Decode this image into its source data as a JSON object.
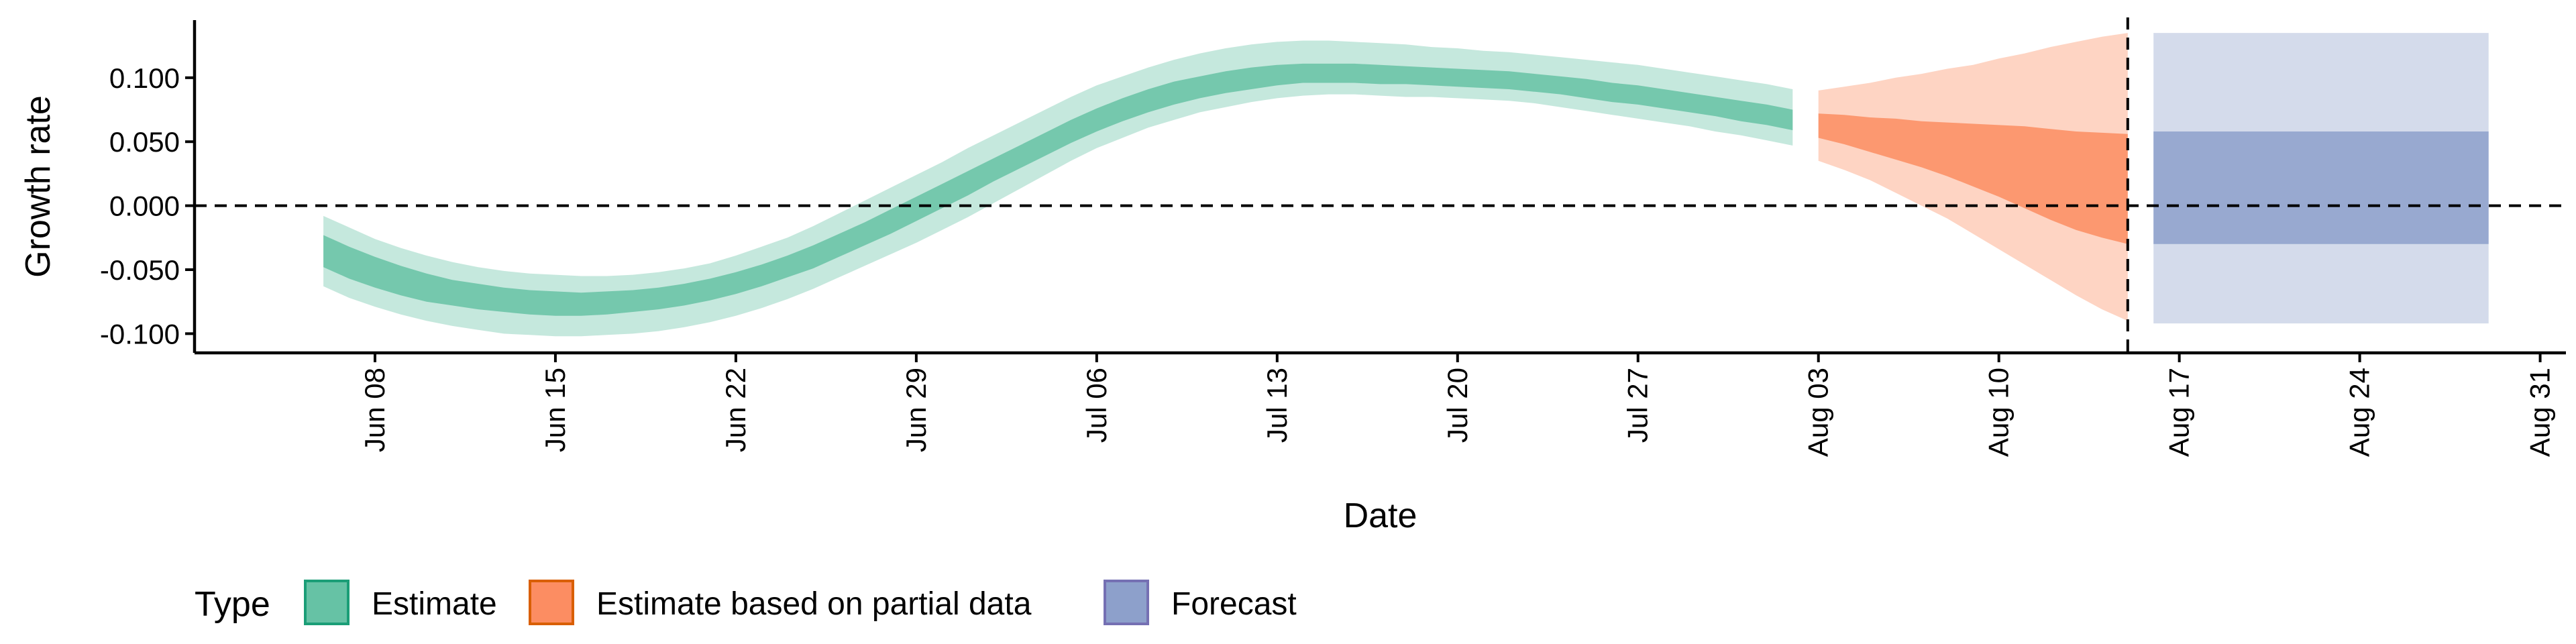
{
  "chart_data": {
    "type": "area",
    "xlabel": "Date",
    "ylabel": "Growth rate",
    "ylim": [
      -0.115,
      0.145
    ],
    "xlim": [
      "2020-06-01",
      "2020-09-01"
    ],
    "y_ticks": [
      {
        "value": 0.1,
        "label": "0.100"
      },
      {
        "value": 0.05,
        "label": "0.050"
      },
      {
        "value": 0.0,
        "label": "0.000"
      },
      {
        "value": -0.05,
        "label": "-0.050"
      },
      {
        "value": -0.1,
        "label": "-0.100"
      }
    ],
    "x_ticks": [
      {
        "date": "2020-06-08",
        "label": "Jun 08"
      },
      {
        "date": "2020-06-15",
        "label": "Jun 15"
      },
      {
        "date": "2020-06-22",
        "label": "Jun 22"
      },
      {
        "date": "2020-06-29",
        "label": "Jun 29"
      },
      {
        "date": "2020-07-06",
        "label": "Jul 06"
      },
      {
        "date": "2020-07-13",
        "label": "Jul 13"
      },
      {
        "date": "2020-07-20",
        "label": "Jul 20"
      },
      {
        "date": "2020-07-27",
        "label": "Jul 27"
      },
      {
        "date": "2020-08-03",
        "label": "Aug 03"
      },
      {
        "date": "2020-08-10",
        "label": "Aug 10"
      },
      {
        "date": "2020-08-17",
        "label": "Aug 17"
      },
      {
        "date": "2020-08-24",
        "label": "Aug 24"
      },
      {
        "date": "2020-08-31",
        "label": "Aug 31"
      }
    ],
    "reference_lines": {
      "horizontal_y": 0.0,
      "vertical_date": "2020-08-15"
    },
    "grid": false,
    "legend_position": "bottom",
    "legend_title": "Type",
    "series": [
      {
        "name": "Estimate",
        "color": "#66c2a5",
        "color_dark": "#1b9e77",
        "x": [
          "2020-06-06",
          "2020-06-07",
          "2020-06-08",
          "2020-06-09",
          "2020-06-10",
          "2020-06-11",
          "2020-06-12",
          "2020-06-13",
          "2020-06-14",
          "2020-06-15",
          "2020-06-16",
          "2020-06-17",
          "2020-06-18",
          "2020-06-19",
          "2020-06-20",
          "2020-06-21",
          "2020-06-22",
          "2020-06-23",
          "2020-06-24",
          "2020-06-25",
          "2020-06-26",
          "2020-06-27",
          "2020-06-28",
          "2020-06-29",
          "2020-06-30",
          "2020-07-01",
          "2020-07-02",
          "2020-07-03",
          "2020-07-04",
          "2020-07-05",
          "2020-07-06",
          "2020-07-07",
          "2020-07-08",
          "2020-07-09",
          "2020-07-10",
          "2020-07-11",
          "2020-07-12",
          "2020-07-13",
          "2020-07-14",
          "2020-07-15",
          "2020-07-16",
          "2020-07-17",
          "2020-07-18",
          "2020-07-19",
          "2020-07-20",
          "2020-07-21",
          "2020-07-22",
          "2020-07-23",
          "2020-07-24",
          "2020-07-25",
          "2020-07-26",
          "2020-07-27",
          "2020-07-28",
          "2020-07-29",
          "2020-07-30",
          "2020-07-31",
          "2020-08-01",
          "2020-08-02"
        ],
        "lower_90": [
          -0.063,
          -0.072,
          -0.079,
          -0.085,
          -0.09,
          -0.094,
          -0.097,
          -0.1,
          -0.101,
          -0.102,
          -0.102,
          -0.101,
          -0.1,
          -0.098,
          -0.095,
          -0.091,
          -0.086,
          -0.08,
          -0.073,
          -0.065,
          -0.056,
          -0.047,
          -0.038,
          -0.029,
          -0.019,
          -0.009,
          0.002,
          0.013,
          0.024,
          0.035,
          0.045,
          0.053,
          0.061,
          0.067,
          0.073,
          0.077,
          0.081,
          0.084,
          0.086,
          0.087,
          0.087,
          0.086,
          0.085,
          0.085,
          0.084,
          0.083,
          0.082,
          0.08,
          0.077,
          0.074,
          0.071,
          0.068,
          0.065,
          0.062,
          0.058,
          0.055,
          0.051,
          0.047
        ],
        "upper_90": [
          -0.008,
          -0.017,
          -0.026,
          -0.033,
          -0.039,
          -0.044,
          -0.048,
          -0.051,
          -0.053,
          -0.054,
          -0.055,
          -0.055,
          -0.054,
          -0.052,
          -0.049,
          -0.045,
          -0.039,
          -0.032,
          -0.025,
          -0.016,
          -0.006,
          0.004,
          0.014,
          0.024,
          0.034,
          0.045,
          0.055,
          0.065,
          0.075,
          0.085,
          0.094,
          0.101,
          0.108,
          0.114,
          0.119,
          0.123,
          0.126,
          0.128,
          0.129,
          0.129,
          0.128,
          0.127,
          0.126,
          0.124,
          0.123,
          0.121,
          0.12,
          0.118,
          0.116,
          0.114,
          0.112,
          0.11,
          0.107,
          0.104,
          0.101,
          0.098,
          0.095,
          0.091
        ],
        "lower_50": [
          -0.048,
          -0.057,
          -0.064,
          -0.07,
          -0.075,
          -0.078,
          -0.081,
          -0.083,
          -0.085,
          -0.086,
          -0.086,
          -0.085,
          -0.083,
          -0.081,
          -0.078,
          -0.074,
          -0.069,
          -0.063,
          -0.056,
          -0.049,
          -0.04,
          -0.031,
          -0.022,
          -0.012,
          -0.002,
          0.008,
          0.019,
          0.029,
          0.039,
          0.049,
          0.058,
          0.066,
          0.073,
          0.079,
          0.084,
          0.088,
          0.091,
          0.094,
          0.096,
          0.096,
          0.096,
          0.095,
          0.095,
          0.094,
          0.093,
          0.092,
          0.091,
          0.089,
          0.087,
          0.084,
          0.081,
          0.079,
          0.076,
          0.073,
          0.07,
          0.066,
          0.063,
          0.059
        ],
        "upper_50": [
          -0.023,
          -0.032,
          -0.04,
          -0.047,
          -0.053,
          -0.058,
          -0.061,
          -0.064,
          -0.066,
          -0.067,
          -0.068,
          -0.067,
          -0.066,
          -0.064,
          -0.061,
          -0.057,
          -0.052,
          -0.046,
          -0.039,
          -0.031,
          -0.022,
          -0.013,
          -0.003,
          0.007,
          0.017,
          0.027,
          0.037,
          0.047,
          0.057,
          0.067,
          0.076,
          0.084,
          0.091,
          0.097,
          0.101,
          0.105,
          0.108,
          0.11,
          0.111,
          0.111,
          0.111,
          0.11,
          0.109,
          0.108,
          0.107,
          0.106,
          0.105,
          0.103,
          0.101,
          0.099,
          0.096,
          0.094,
          0.091,
          0.088,
          0.085,
          0.082,
          0.079,
          0.075
        ]
      },
      {
        "name": "Estimate based on partial data",
        "color": "#fc8d62",
        "color_dark": "#d95f02",
        "x": [
          "2020-08-03",
          "2020-08-04",
          "2020-08-05",
          "2020-08-06",
          "2020-08-07",
          "2020-08-08",
          "2020-08-09",
          "2020-08-10",
          "2020-08-11",
          "2020-08-12",
          "2020-08-13",
          "2020-08-14",
          "2020-08-15"
        ],
        "lower_90": [
          0.035,
          0.028,
          0.02,
          0.01,
          0.0,
          -0.01,
          -0.022,
          -0.034,
          -0.046,
          -0.058,
          -0.07,
          -0.081,
          -0.09
        ],
        "upper_90": [
          0.09,
          0.093,
          0.096,
          0.1,
          0.103,
          0.107,
          0.11,
          0.115,
          0.119,
          0.124,
          0.128,
          0.132,
          0.135
        ],
        "lower_50": [
          0.053,
          0.048,
          0.042,
          0.036,
          0.03,
          0.023,
          0.015,
          0.007,
          -0.002,
          -0.011,
          -0.019,
          -0.025,
          -0.03
        ],
        "upper_50": [
          0.072,
          0.071,
          0.069,
          0.068,
          0.066,
          0.065,
          0.064,
          0.063,
          0.062,
          0.06,
          0.058,
          0.057,
          0.056
        ]
      },
      {
        "name": "Forecast",
        "color": "#8da0cb",
        "color_dark": "#7570b3",
        "x": [
          "2020-08-16",
          "2020-08-29"
        ],
        "lower_90": [
          -0.092,
          -0.092
        ],
        "upper_90": [
          0.135,
          0.135
        ],
        "lower_50": [
          -0.03,
          -0.03
        ],
        "upper_50": [
          0.058,
          0.058
        ]
      }
    ]
  }
}
